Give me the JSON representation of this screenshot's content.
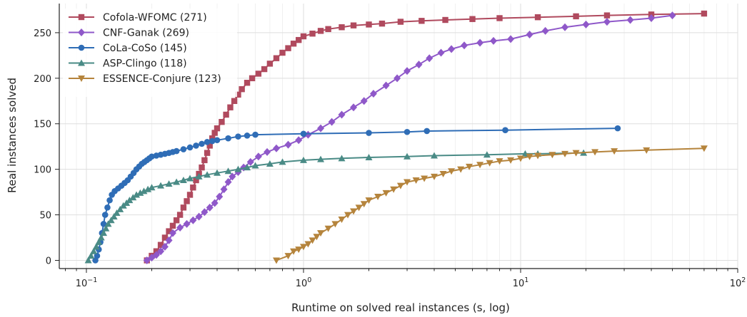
{
  "chart_data": {
    "type": "line",
    "title": "",
    "xlabel": "Runtime on solved real instances (s, log)",
    "ylabel": "Real instances solved",
    "xscale": "log",
    "xlim": [
      0.075,
      100
    ],
    "ylim": [
      -9,
      282
    ],
    "xticks": [
      {
        "value": 0.1,
        "base": "10",
        "exp": "−1"
      },
      {
        "value": 1,
        "base": "10",
        "exp": "0"
      },
      {
        "value": 10,
        "base": "10",
        "exp": "1"
      },
      {
        "value": 100,
        "base": "10",
        "exp": "2"
      }
    ],
    "yticks": [
      "0",
      "50",
      "100",
      "150",
      "200",
      "250"
    ],
    "grid": true,
    "legend_position": "top-left",
    "series": [
      {
        "name": "Cofola-WFOMC (271)",
        "color": "#b04a5e",
        "marker": "square",
        "x": [
          0.19,
          0.2,
          0.21,
          0.22,
          0.23,
          0.24,
          0.25,
          0.26,
          0.27,
          0.28,
          0.29,
          0.3,
          0.31,
          0.32,
          0.33,
          0.34,
          0.35,
          0.36,
          0.37,
          0.38,
          0.39,
          0.4,
          0.42,
          0.44,
          0.46,
          0.48,
          0.5,
          0.52,
          0.55,
          0.58,
          0.62,
          0.66,
          0.7,
          0.75,
          0.8,
          0.85,
          0.9,
          0.95,
          1.0,
          1.1,
          1.2,
          1.3,
          1.5,
          1.7,
          2.0,
          2.3,
          2.8,
          3.5,
          4.5,
          6.0,
          8.0,
          12,
          18,
          25,
          40,
          70
        ],
        "y": [
          0,
          5,
          10,
          17,
          25,
          32,
          38,
          44,
          50,
          58,
          65,
          72,
          80,
          88,
          95,
          102,
          110,
          118,
          126,
          134,
          140,
          145,
          152,
          160,
          168,
          175,
          182,
          188,
          195,
          200,
          205,
          210,
          216,
          222,
          228,
          233,
          238,
          242,
          246,
          249,
          252,
          254,
          256,
          258,
          259,
          260,
          262,
          263,
          264,
          265,
          266,
          267,
          268,
          269,
          270,
          271
        ]
      },
      {
        "name": "CNF-Ganak (269)",
        "color": "#8f58c9",
        "marker": "diamond",
        "x": [
          0.19,
          0.2,
          0.21,
          0.22,
          0.23,
          0.24,
          0.25,
          0.27,
          0.29,
          0.31,
          0.33,
          0.35,
          0.37,
          0.39,
          0.41,
          0.43,
          0.45,
          0.47,
          0.5,
          0.53,
          0.57,
          0.62,
          0.68,
          0.75,
          0.85,
          0.95,
          1.05,
          1.2,
          1.35,
          1.5,
          1.7,
          1.9,
          2.1,
          2.4,
          2.7,
          3.0,
          3.4,
          3.8,
          4.3,
          4.8,
          5.5,
          6.5,
          7.5,
          9,
          11,
          13,
          16,
          20,
          25,
          32,
          40,
          50
        ],
        "y": [
          0,
          3,
          6,
          10,
          15,
          22,
          30,
          36,
          40,
          44,
          48,
          53,
          58,
          63,
          70,
          78,
          86,
          92,
          97,
          102,
          108,
          114,
          119,
          123,
          127,
          132,
          138,
          145,
          152,
          160,
          168,
          175,
          183,
          192,
          200,
          208,
          215,
          222,
          228,
          232,
          236,
          239,
          241,
          243,
          248,
          252,
          256,
          259,
          262,
          264,
          266,
          269
        ]
      },
      {
        "name": "CoLa-CoSo (145)",
        "color": "#2f6db6",
        "marker": "circle",
        "x": [
          0.11,
          0.112,
          0.114,
          0.116,
          0.118,
          0.12,
          0.122,
          0.125,
          0.128,
          0.131,
          0.135,
          0.14,
          0.145,
          0.15,
          0.155,
          0.16,
          0.165,
          0.17,
          0.175,
          0.18,
          0.185,
          0.19,
          0.195,
          0.2,
          0.21,
          0.22,
          0.23,
          0.24,
          0.25,
          0.26,
          0.28,
          0.3,
          0.32,
          0.34,
          0.36,
          0.38,
          0.4,
          0.45,
          0.5,
          0.55,
          0.6,
          1.0,
          2.0,
          3.0,
          3.7,
          8.5,
          28
        ],
        "y": [
          0,
          5,
          12,
          20,
          30,
          40,
          50,
          58,
          66,
          72,
          76,
          79,
          82,
          85,
          88,
          92,
          96,
          100,
          103,
          106,
          108,
          110,
          112,
          114,
          115,
          116,
          117,
          118,
          119,
          120,
          122,
          124,
          126,
          128,
          130,
          131,
          132,
          134,
          136,
          137,
          138,
          139,
          140,
          141,
          142,
          143,
          145
        ]
      },
      {
        "name": "ASP-Clingo (118)",
        "color": "#4a8b86",
        "marker": "triangle-up",
        "x": [
          0.102,
          0.105,
          0.108,
          0.111,
          0.114,
          0.117,
          0.12,
          0.123,
          0.126,
          0.13,
          0.134,
          0.138,
          0.143,
          0.148,
          0.153,
          0.158,
          0.164,
          0.17,
          0.177,
          0.184,
          0.192,
          0.2,
          0.22,
          0.24,
          0.26,
          0.28,
          0.3,
          0.33,
          0.36,
          0.4,
          0.45,
          0.5,
          0.55,
          0.6,
          0.7,
          0.8,
          1.0,
          1.2,
          1.5,
          2.0,
          3.0,
          4.0,
          7.0,
          10.5,
          12,
          19.5
        ],
        "y": [
          0,
          5,
          10,
          15,
          20,
          25,
          30,
          35,
          40,
          44,
          48,
          52,
          56,
          60,
          63,
          66,
          69,
          72,
          74,
          76,
          78,
          80,
          82,
          84,
          86,
          88,
          90,
          92,
          94,
          96,
          98,
          100,
          102,
          104,
          106,
          108,
          110,
          111,
          112,
          113,
          114,
          115,
          116,
          117,
          117,
          118
        ]
      },
      {
        "name": "ESSENCE-Conjure (123)",
        "color": "#b5843c",
        "marker": "triangle-down",
        "x": [
          0.75,
          0.85,
          0.9,
          0.95,
          1.0,
          1.05,
          1.1,
          1.15,
          1.2,
          1.3,
          1.4,
          1.5,
          1.6,
          1.7,
          1.8,
          1.9,
          2.0,
          2.2,
          2.4,
          2.6,
          2.8,
          3.0,
          3.3,
          3.6,
          4.0,
          4.4,
          4.8,
          5.3,
          5.8,
          6.5,
          7.2,
          8.0,
          9.0,
          10.0,
          11.0,
          12.0,
          14,
          16,
          18,
          22,
          27,
          38,
          70
        ],
        "y": [
          0,
          5,
          10,
          12,
          15,
          18,
          22,
          26,
          30,
          35,
          40,
          45,
          50,
          54,
          58,
          62,
          66,
          70,
          74,
          78,
          82,
          86,
          88,
          90,
          92,
          95,
          98,
          100,
          103,
          105,
          107,
          109,
          110,
          112,
          114,
          115,
          116,
          117,
          118,
          119,
          120,
          121,
          123
        ]
      }
    ]
  }
}
